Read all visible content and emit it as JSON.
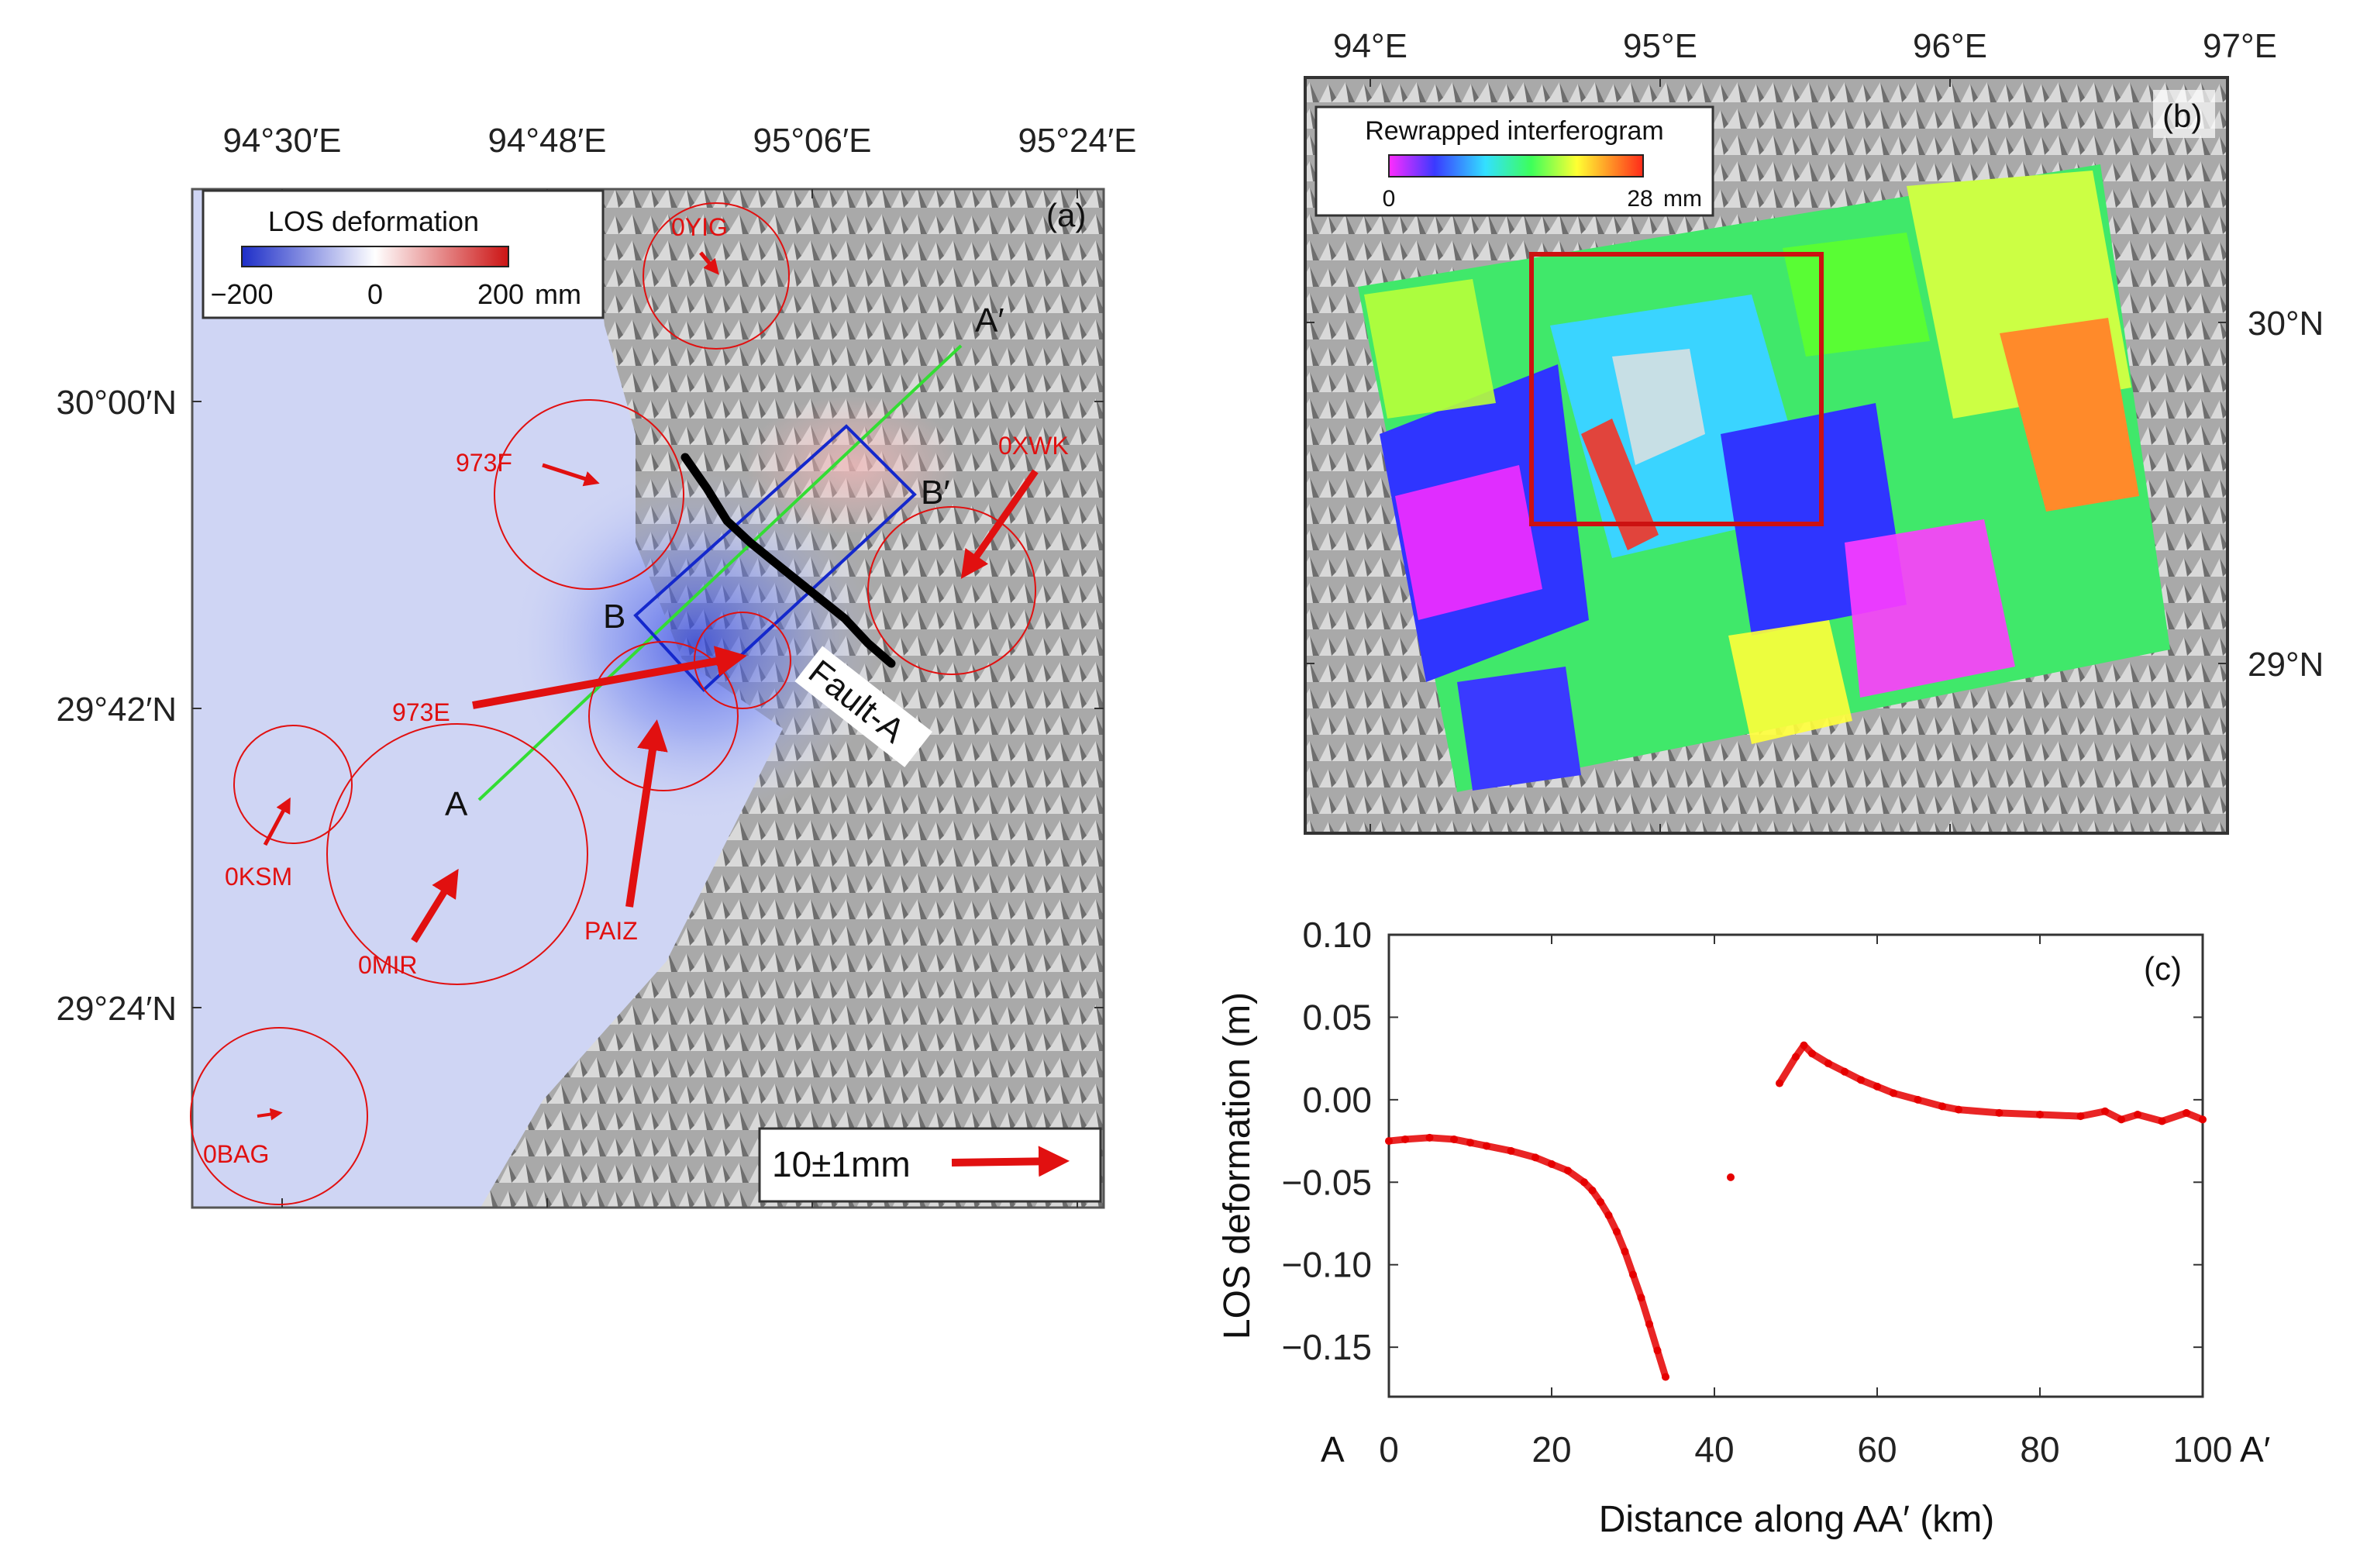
{
  "panel_a": {
    "tag": "(a)",
    "lon_ticks": [
      "94°30′E",
      "94°48′E",
      "95°06′E",
      "95°24′E"
    ],
    "lat_ticks": [
      "30°00′N",
      "29°42′N",
      "29°24′N"
    ],
    "colorbar": {
      "title": "LOS deformation",
      "min": "−200",
      "mid": "0",
      "max": "200",
      "unit": "mm"
    },
    "fault_label": "Fault-A",
    "profile": {
      "start": "A",
      "end": "A′"
    },
    "box": {
      "left": "B",
      "right": "B′"
    },
    "stations": [
      {
        "name": "0YIG",
        "de": 0.2,
        "dn": -0.1
      },
      {
        "name": "973F",
        "de": 0.9,
        "dn": -0.4
      },
      {
        "name": "0XWK",
        "de": -2.0,
        "dn": -2.4
      },
      {
        "name": "973E",
        "de": 6.6,
        "dn": 1.3
      },
      {
        "name": "PAIZ",
        "de": 0.4,
        "dn": 4.6
      },
      {
        "name": "0KSM",
        "de": 0.5,
        "dn": 1.0
      },
      {
        "name": "0MIR",
        "de": 0.8,
        "dn": 1.4
      },
      {
        "name": "0BAG",
        "de": 0.3,
        "dn": 0.1
      }
    ],
    "scale_label": "10±1mm",
    "colors": {
      "stations": "#e11010",
      "profile_line": "#33dd33",
      "box": "#1428cc",
      "fault": "#000000"
    }
  },
  "panel_b": {
    "tag": "(b)",
    "lon_ticks": [
      "94°E",
      "95°E",
      "96°E",
      "97°E"
    ],
    "lat_ticks": [
      "30°N",
      "29°N"
    ],
    "colorbar": {
      "title": "Rewrapped interferogram",
      "min": "0",
      "max": "28",
      "unit": "mm"
    },
    "colors": {
      "study_box": "#cc1111"
    }
  },
  "chart_data": {
    "type": "scatter",
    "tag": "(c)",
    "xlabel": "Distance along  AA′ (km)",
    "ylabel": "LOS deformation (m)",
    "xlim": [
      0,
      100
    ],
    "ylim": [
      -0.18,
      0.1
    ],
    "xticks": [
      "0",
      "20",
      "40",
      "60",
      "80",
      "100"
    ],
    "yticks": [
      "0.10",
      "0.05",
      "0.00",
      "−0.05",
      "−0.10",
      "−0.15"
    ],
    "x_end_labels": {
      "start": "A",
      "end": "A′"
    },
    "color": "#e60000",
    "series": [
      {
        "x": [
          0,
          2,
          5,
          8,
          10,
          12,
          15,
          18,
          20,
          22,
          24,
          25,
          26,
          27,
          28,
          29,
          30,
          31,
          32,
          33,
          34
        ],
        "y": [
          -0.025,
          -0.024,
          -0.023,
          -0.024,
          -0.026,
          -0.028,
          -0.031,
          -0.035,
          -0.039,
          -0.043,
          -0.05,
          -0.055,
          -0.062,
          -0.07,
          -0.08,
          -0.092,
          -0.106,
          -0.12,
          -0.136,
          -0.152,
          -0.168
        ]
      },
      {
        "x": [
          42
        ],
        "y": [
          -0.047
        ]
      },
      {
        "x": [
          48,
          50,
          51,
          52,
          54,
          56,
          58,
          60,
          62,
          65,
          68,
          70,
          75,
          80,
          85,
          88,
          90,
          92,
          95,
          98,
          100
        ],
        "y": [
          0.01,
          0.026,
          0.033,
          0.028,
          0.022,
          0.017,
          0.012,
          0.008,
          0.004,
          0.0,
          -0.004,
          -0.006,
          -0.008,
          -0.009,
          -0.01,
          -0.007,
          -0.012,
          -0.009,
          -0.013,
          -0.008,
          -0.012
        ]
      }
    ]
  }
}
